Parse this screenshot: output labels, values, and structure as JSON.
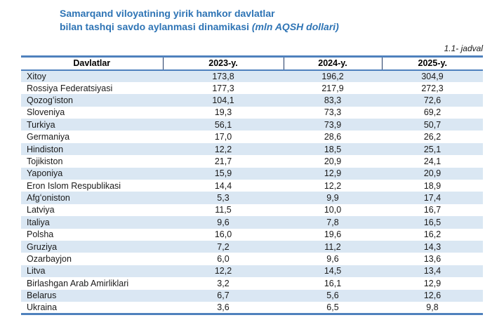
{
  "title": {
    "line1": "Samarqand viloyatining yirik hamkor davlatlar",
    "line2": "bilan tashqi savdo aylanmasi dinamikasi",
    "line2_italic": "(mln AQSH dollari)"
  },
  "table_label": "1.1- jadval",
  "colors": {
    "title_blue": "#2E74B5",
    "border_blue": "#4F81BD",
    "header_separator": "#1F3864",
    "row_stripe_blue": "#DAE7F3",
    "text": "#1A1A1A"
  },
  "table": {
    "headers": [
      "Davlatlar",
      "2023-y.",
      "2024-y.",
      "2025-y."
    ],
    "rows": [
      {
        "country": "Xitoy",
        "y2023": "173,8",
        "y2024": "196,2",
        "y2025": "304,9"
      },
      {
        "country": "Rossiya Federatsiyasi",
        "y2023": "177,3",
        "y2024": "217,9",
        "y2025": "272,3"
      },
      {
        "country": "Qozogʻiston",
        "y2023": "104,1",
        "y2024": "83,3",
        "y2025": "72,6"
      },
      {
        "country": "Sloveniya",
        "y2023": "19,3",
        "y2024": "73,3",
        "y2025": "69,2"
      },
      {
        "country": "Turkiya",
        "y2023": "56,1",
        "y2024": "73,9",
        "y2025": "50,7"
      },
      {
        "country": "Germaniya",
        "y2023": "17,0",
        "y2024": "28,6",
        "y2025": "26,2"
      },
      {
        "country": "Hindiston",
        "y2023": "12,2",
        "y2024": "18,5",
        "y2025": "25,1"
      },
      {
        "country": "Tojikiston",
        "y2023": "21,7",
        "y2024": "20,9",
        "y2025": "24,1"
      },
      {
        "country": "Yaponiya",
        "y2023": "15,9",
        "y2024": "12,9",
        "y2025": "20,9"
      },
      {
        "country": "Eron Islom Respublikasi",
        "y2023": "14,4",
        "y2024": "12,2",
        "y2025": "18,9"
      },
      {
        "country": "Afgʻoniston",
        "y2023": "5,3",
        "y2024": "9,9",
        "y2025": "17,4"
      },
      {
        "country": "Latviya",
        "y2023": "11,5",
        "y2024": "10,0",
        "y2025": "16,7"
      },
      {
        "country": "Italiya",
        "y2023": "9,6",
        "y2024": "7,8",
        "y2025": "16,5"
      },
      {
        "country": "Polsha",
        "y2023": "16,0",
        "y2024": "19,6",
        "y2025": "16,2"
      },
      {
        "country": "Gruziya",
        "y2023": "7,2",
        "y2024": "11,2",
        "y2025": "14,3"
      },
      {
        "country": "Ozarbayjon",
        "y2023": "6,0",
        "y2024": "9,6",
        "y2025": "13,6"
      },
      {
        "country": "Litva",
        "y2023": "12,2",
        "y2024": "14,5",
        "y2025": "13,4"
      },
      {
        "country": "Birlashgan Arab Amirliklari",
        "y2023": "3,2",
        "y2024": "16,1",
        "y2025": "12,9"
      },
      {
        "country": "Belarus",
        "y2023": "6,7",
        "y2024": "5,6",
        "y2025": "12,6"
      },
      {
        "country": "Ukraina",
        "y2023": "3,6",
        "y2024": "6,5",
        "y2025": "9,8"
      }
    ]
  }
}
